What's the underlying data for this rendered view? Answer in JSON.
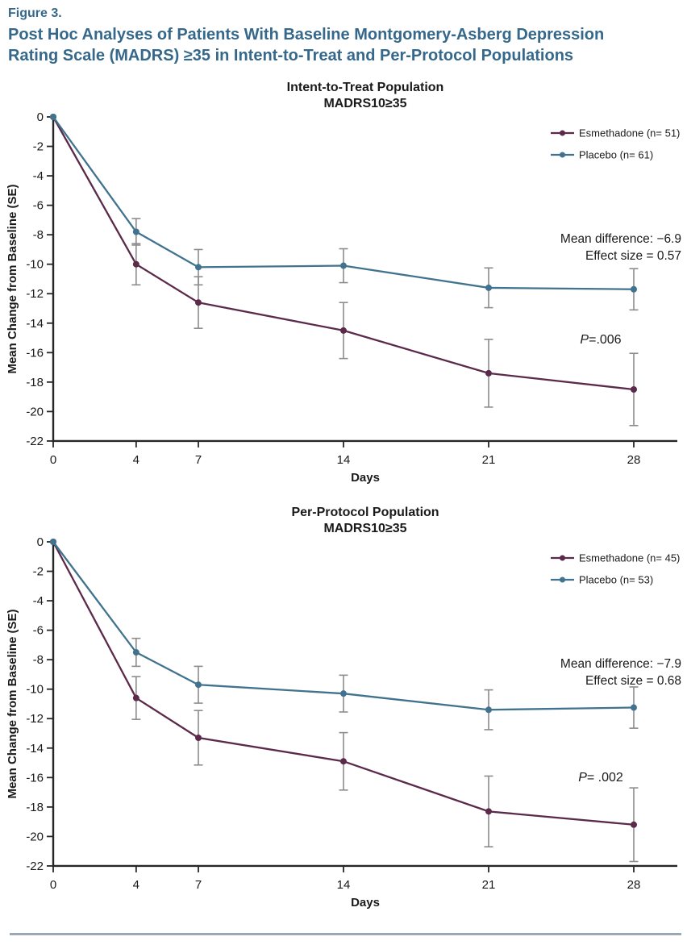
{
  "header": {
    "figure_label": "Figure 3.",
    "title_line1": "Post Hoc Analyses of Patients With Baseline Montgomery-Asberg Depression",
    "title_line2": "Rating Scale (MADRS) ≥35 in Intent-to-Treat and Per-Protocol Populations",
    "accent_color": "#35688a"
  },
  "chart_data": [
    {
      "type": "line",
      "title_line1": "Intent-to-Treat Population",
      "title_line2": "MADRS10≥35",
      "xlabel": "Days",
      "ylabel": "Mean Change from Baseline (SE)",
      "x": [
        0,
        4,
        7,
        14,
        21,
        28
      ],
      "xlim": [
        0,
        30
      ],
      "ylim": [
        0,
        -22
      ],
      "y_tick_step": -2,
      "grid": false,
      "legend_position": "top-right",
      "error_bar_color": "#8c8c8c",
      "series": [
        {
          "name": "Esmethadone (n= 51)",
          "color": "#5b2a4a",
          "values": [
            0,
            -10.0,
            -12.6,
            -14.5,
            -17.4,
            -18.5
          ],
          "se": [
            0,
            1.4,
            1.75,
            1.9,
            2.3,
            2.45
          ]
        },
        {
          "name": "Placebo (n= 61)",
          "color": "#41738f",
          "values": [
            0,
            -7.8,
            -10.2,
            -10.1,
            -11.6,
            -11.7
          ],
          "se": [
            0,
            0.9,
            1.2,
            1.15,
            1.35,
            1.4
          ]
        }
      ],
      "annotations": {
        "mean_difference": "Mean difference: −6.9",
        "effect_size": "Effect size = 0.57",
        "p_italic": "P",
        "p_rest": "=.006"
      }
    },
    {
      "type": "line",
      "title_line1": "Per-Protocol Population",
      "title_line2": "MADRS10≥35",
      "xlabel": "Days",
      "ylabel": "Mean Change from Baseline (SE)",
      "x": [
        0,
        4,
        7,
        14,
        21,
        28
      ],
      "xlim": [
        0,
        30
      ],
      "ylim": [
        0,
        -22
      ],
      "y_tick_step": -2,
      "grid": false,
      "legend_position": "top-right",
      "error_bar_color": "#8c8c8c",
      "series": [
        {
          "name": "Esmethadone (n= 45)",
          "color": "#5b2a4a",
          "values": [
            0,
            -10.6,
            -13.3,
            -14.9,
            -18.3,
            -19.2
          ],
          "se": [
            0,
            1.45,
            1.85,
            1.95,
            2.4,
            2.5
          ]
        },
        {
          "name": "Placebo (n= 53)",
          "color": "#41738f",
          "values": [
            0,
            -7.5,
            -9.7,
            -10.3,
            -11.4,
            -11.25
          ],
          "se": [
            0,
            0.95,
            1.25,
            1.25,
            1.35,
            1.4
          ]
        }
      ],
      "annotations": {
        "mean_difference": "Mean difference: −7.9",
        "effect_size": "Effect size = 0.68",
        "p_italic": "P",
        "p_rest": "= .002"
      }
    }
  ]
}
